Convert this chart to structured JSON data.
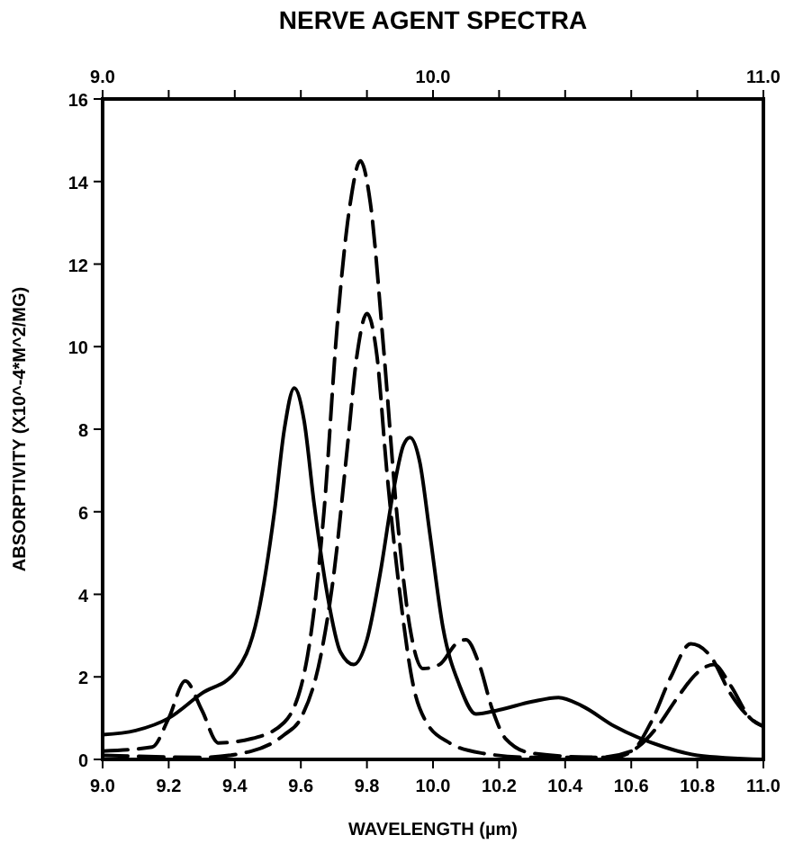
{
  "chart_data": {
    "type": "line",
    "title": "NERVE AGENT SPECTRA",
    "xlabel": "WAVELENGTH (µm)",
    "ylabel": "ABSORPTIVITY (X10^-4*M^2/MG)",
    "xlim": [
      9.0,
      11.0
    ],
    "xticks": [
      {
        "value": 9.0,
        "label": "9.0"
      },
      {
        "value": 9.2,
        "label": "9.2"
      },
      {
        "value": 9.4,
        "label": "9.4"
      },
      {
        "value": 9.6,
        "label": "9.6"
      },
      {
        "value": 9.8,
        "label": "9.8"
      },
      {
        "value": 10.0,
        "label": "10.0"
      },
      {
        "value": 10.2,
        "label": "10.2"
      },
      {
        "value": 10.4,
        "label": "10.4"
      },
      {
        "value": 10.6,
        "label": "10.6"
      },
      {
        "value": 10.8,
        "label": "10.8"
      },
      {
        "value": 11.0,
        "label": "11.0"
      }
    ],
    "x2lim": [
      9.0,
      11.0
    ],
    "x2ticks": [
      {
        "value": 9.0,
        "label": "9.0"
      },
      {
        "value": 9.2,
        "label": null
      },
      {
        "value": 9.4,
        "label": null
      },
      {
        "value": 9.6,
        "label": null
      },
      {
        "value": 9.8,
        "label": null
      },
      {
        "value": 10.0,
        "label": "10.0"
      },
      {
        "value": 10.2,
        "label": null
      },
      {
        "value": 10.4,
        "label": null
      },
      {
        "value": 10.6,
        "label": null
      },
      {
        "value": 10.8,
        "label": null
      },
      {
        "value": 11.0,
        "label": "11.0"
      }
    ],
    "ylim": [
      0,
      16
    ],
    "yticks": [
      0,
      2,
      4,
      6,
      8,
      10,
      12,
      14,
      16
    ],
    "series": [
      {
        "color": "#000000",
        "line_style": "solid",
        "x": [
          9.0,
          9.1,
          9.2,
          9.3,
          9.4,
          9.47,
          9.52,
          9.55,
          9.58,
          9.61,
          9.64,
          9.68,
          9.72,
          9.76,
          9.8,
          9.84,
          9.88,
          9.91,
          9.93,
          9.96,
          9.99,
          10.03,
          10.08,
          10.13,
          10.2,
          10.3,
          10.38,
          10.45,
          10.55,
          10.7,
          10.8,
          11.0
        ],
        "values": [
          0.6,
          0.7,
          1.0,
          1.6,
          2.1,
          3.5,
          6.0,
          8.0,
          9.0,
          8.2,
          6.2,
          4.0,
          2.6,
          2.3,
          2.9,
          4.5,
          6.5,
          7.6,
          7.8,
          7.2,
          5.5,
          3.2,
          1.8,
          1.1,
          1.2,
          1.4,
          1.5,
          1.3,
          0.8,
          0.3,
          0.1,
          0.0
        ]
      },
      {
        "color": "#000000",
        "line_style": "dashed",
        "x": [
          9.0,
          9.15,
          9.2,
          9.25,
          9.3,
          9.35,
          9.45,
          9.55,
          9.62,
          9.67,
          9.71,
          9.75,
          9.78,
          9.81,
          9.85,
          9.89,
          9.93,
          9.97,
          10.02,
          10.07,
          10.1,
          10.14,
          10.18,
          10.22,
          10.3,
          10.5,
          10.6,
          10.66,
          10.72,
          10.78,
          10.84,
          10.9,
          10.96,
          11.0
        ],
        "values": [
          0.2,
          0.3,
          1.0,
          1.9,
          1.2,
          0.4,
          0.5,
          0.9,
          2.5,
          6.0,
          10.5,
          13.5,
          14.5,
          13.5,
          10.0,
          6.0,
          3.2,
          2.2,
          2.3,
          2.8,
          2.9,
          2.3,
          1.2,
          0.5,
          0.15,
          0.05,
          0.2,
          0.9,
          2.0,
          2.8,
          2.5,
          1.6,
          1.0,
          0.8
        ]
      },
      {
        "color": "#000000",
        "line_style": "dashed",
        "x": [
          9.0,
          9.3,
          9.45,
          9.55,
          9.6,
          9.66,
          9.7,
          9.74,
          9.77,
          9.8,
          9.83,
          9.86,
          9.9,
          9.94,
          9.98,
          10.05,
          10.15,
          10.3,
          10.55,
          10.62,
          10.68,
          10.74,
          10.8,
          10.85,
          10.9,
          10.96,
          11.0
        ],
        "values": [
          0.1,
          0.05,
          0.2,
          0.6,
          1.0,
          2.5,
          4.5,
          7.5,
          9.8,
          10.8,
          9.8,
          7.0,
          4.0,
          1.8,
          0.9,
          0.4,
          0.15,
          0.05,
          0.05,
          0.3,
          0.8,
          1.5,
          2.1,
          2.3,
          1.8,
          1.0,
          0.8
        ]
      }
    ]
  }
}
